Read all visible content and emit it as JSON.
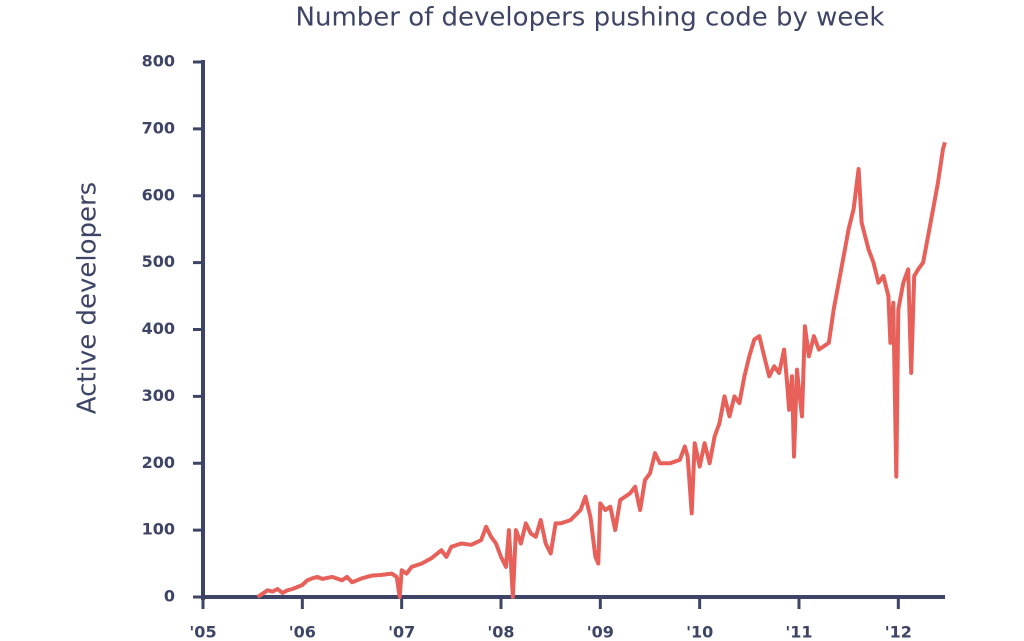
{
  "chart_data": {
    "type": "line",
    "title": "Number of developers pushing code by week",
    "y_label": "Active developers",
    "xlim": [
      2005,
      2012.47
    ],
    "ylim": [
      0,
      800
    ],
    "xticks": [
      {
        "value": 2005,
        "label": "'05"
      },
      {
        "value": 2006,
        "label": "'06"
      },
      {
        "value": 2007,
        "label": "'07"
      },
      {
        "value": 2008,
        "label": "'08"
      },
      {
        "value": 2009,
        "label": "'09"
      },
      {
        "value": 2010,
        "label": "'10"
      },
      {
        "value": 2011,
        "label": "'11"
      },
      {
        "value": 2012,
        "label": "'12"
      }
    ],
    "yticks": [
      0,
      100,
      200,
      300,
      400,
      500,
      600,
      700,
      800
    ],
    "grid": false,
    "series": [
      {
        "color": "#e8605a",
        "x": [
          2005.55,
          2005.6,
          2005.65,
          2005.7,
          2005.75,
          2005.8,
          2005.85,
          2005.9,
          2005.95,
          2006.0,
          2006.05,
          2006.1,
          2006.15,
          2006.2,
          2006.3,
          2006.4,
          2006.45,
          2006.5,
          2006.6,
          2006.7,
          2006.8,
          2006.9,
          2006.95,
          2006.98,
          2007.0,
          2007.05,
          2007.1,
          2007.2,
          2007.3,
          2007.4,
          2007.45,
          2007.5,
          2007.6,
          2007.7,
          2007.8,
          2007.85,
          2007.9,
          2007.95,
          2008.0,
          2008.05,
          2008.08,
          2008.12,
          2008.15,
          2008.2,
          2008.25,
          2008.3,
          2008.35,
          2008.4,
          2008.45,
          2008.5,
          2008.55,
          2008.6,
          2008.7,
          2008.8,
          2008.85,
          2008.9,
          2008.95,
          2008.98,
          2009.0,
          2009.05,
          2009.1,
          2009.15,
          2009.2,
          2009.3,
          2009.35,
          2009.4,
          2009.45,
          2009.5,
          2009.55,
          2009.6,
          2009.7,
          2009.8,
          2009.85,
          2009.88,
          2009.92,
          2009.95,
          2010.0,
          2010.05,
          2010.1,
          2010.15,
          2010.2,
          2010.25,
          2010.3,
          2010.35,
          2010.4,
          2010.45,
          2010.5,
          2010.55,
          2010.6,
          2010.65,
          2010.7,
          2010.75,
          2010.8,
          2010.85,
          2010.88,
          2010.9,
          2010.93,
          2010.95,
          2010.98,
          2011.0,
          2011.03,
          2011.06,
          2011.1,
          2011.15,
          2011.2,
          2011.3,
          2011.35,
          2011.4,
          2011.45,
          2011.5,
          2011.55,
          2011.6,
          2011.63,
          2011.7,
          2011.75,
          2011.8,
          2011.85,
          2011.9,
          2011.92,
          2011.95,
          2011.98,
          2012.0,
          2012.05,
          2012.1,
          2012.13,
          2012.16,
          2012.2,
          2012.25,
          2012.3,
          2012.35,
          2012.4,
          2012.45,
          2012.47
        ],
        "values": [
          0,
          5,
          10,
          8,
          12,
          6,
          10,
          12,
          15,
          18,
          25,
          28,
          30,
          27,
          30,
          25,
          30,
          22,
          28,
          32,
          33,
          35,
          30,
          0,
          40,
          35,
          45,
          50,
          58,
          70,
          60,
          75,
          80,
          78,
          85,
          105,
          90,
          80,
          60,
          45,
          100,
          0,
          100,
          80,
          110,
          95,
          90,
          115,
          80,
          65,
          110,
          110,
          115,
          130,
          150,
          120,
          60,
          50,
          140,
          130,
          135,
          100,
          145,
          155,
          165,
          130,
          175,
          185,
          215,
          200,
          200,
          205,
          225,
          210,
          125,
          230,
          195,
          230,
          200,
          240,
          260,
          300,
          270,
          300,
          290,
          330,
          360,
          385,
          390,
          360,
          330,
          345,
          335,
          370,
          320,
          280,
          330,
          210,
          340,
          310,
          270,
          405,
          360,
          390,
          370,
          380,
          430,
          470,
          510,
          550,
          580,
          640,
          560,
          520,
          500,
          470,
          480,
          450,
          380,
          440,
          180,
          430,
          470,
          490,
          335,
          480,
          490,
          500,
          540,
          580,
          620,
          670,
          680
        ]
      }
    ]
  }
}
